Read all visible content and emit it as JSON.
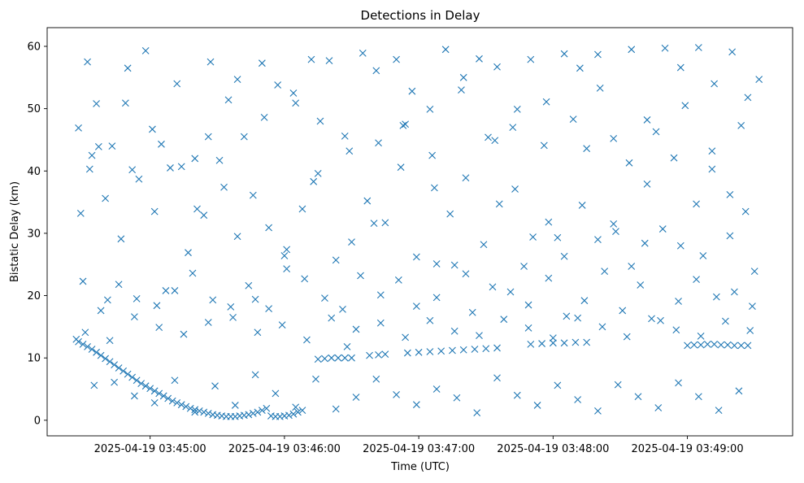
{
  "chart_data": {
    "type": "scatter",
    "title": "Detections in Delay",
    "xlabel": "Time (UTC)",
    "ylabel": "Bistatic Delay (km)",
    "x_tick_labels": [
      "2025-04-19 03:45:00",
      "2025-04-19 03:46:00",
      "2025-04-19 03:47:00",
      "2025-04-19 03:48:00",
      "2025-04-19 03:49:00"
    ],
    "y_ticks": [
      0,
      10,
      20,
      30,
      40,
      50,
      60
    ],
    "xlim": [
      "2025-04-19 03:44:14",
      "2025-04-19 03:49:47"
    ],
    "ylim": [
      -2.5,
      63
    ],
    "grid": false,
    "marker": "x",
    "series_color": "#1f77b4",
    "series": [
      {
        "x": [
          "2025-04-19 03:44:27",
          "2025-04-19 03:44:28",
          "2025-04-19 03:44:30",
          "2025-04-19 03:44:32",
          "2025-04-19 03:44:34",
          "2025-04-19 03:44:36",
          "2025-04-19 03:44:38",
          "2025-04-19 03:44:40",
          "2025-04-19 03:44:42",
          "2025-04-19 03:44:44",
          "2025-04-19 03:44:46",
          "2025-04-19 03:44:48",
          "2025-04-19 03:44:50",
          "2025-04-19 03:44:52",
          "2025-04-19 03:44:54",
          "2025-04-19 03:44:56",
          "2025-04-19 03:44:58",
          "2025-04-19 03:45:00",
          "2025-04-19 03:45:02",
          "2025-04-19 03:45:04",
          "2025-04-19 03:45:06",
          "2025-04-19 03:45:08",
          "2025-04-19 03:45:10",
          "2025-04-19 03:45:12",
          "2025-04-19 03:45:14",
          "2025-04-19 03:45:16",
          "2025-04-19 03:45:18",
          "2025-04-19 03:45:20",
          "2025-04-19 03:45:22",
          "2025-04-19 03:45:24",
          "2025-04-19 03:45:26",
          "2025-04-19 03:45:28",
          "2025-04-19 03:45:30",
          "2025-04-19 03:45:32",
          "2025-04-19 03:45:34",
          "2025-04-19 03:45:36",
          "2025-04-19 03:45:38",
          "2025-04-19 03:45:40",
          "2025-04-19 03:45:42",
          "2025-04-19 03:45:44",
          "2025-04-19 03:45:46",
          "2025-04-19 03:45:48",
          "2025-04-19 03:45:50",
          "2025-04-19 03:45:52",
          "2025-04-19 03:45:54",
          "2025-04-19 03:45:56",
          "2025-04-19 03:45:58",
          "2025-04-19 03:46:00",
          "2025-04-19 03:46:02",
          "2025-04-19 03:46:04",
          "2025-04-19 03:46:06",
          "2025-04-19 03:46:08",
          "2025-04-19 03:46:15",
          "2025-04-19 03:46:18",
          "2025-04-19 03:46:21",
          "2025-04-19 03:46:24",
          "2025-04-19 03:46:27",
          "2025-04-19 03:46:30",
          "2025-04-19 03:46:38",
          "2025-04-19 03:46:42",
          "2025-04-19 03:46:45",
          "2025-04-19 03:46:55",
          "2025-04-19 03:47:00",
          "2025-04-19 03:47:05",
          "2025-04-19 03:47:10",
          "2025-04-19 03:47:15",
          "2025-04-19 03:47:20",
          "2025-04-19 03:47:25",
          "2025-04-19 03:47:30",
          "2025-04-19 03:47:35",
          "2025-04-19 03:47:50",
          "2025-04-19 03:47:55",
          "2025-04-19 03:48:00",
          "2025-04-19 03:48:05",
          "2025-04-19 03:48:10",
          "2025-04-19 03:48:15",
          "2025-04-19 03:49:00",
          "2025-04-19 03:49:03",
          "2025-04-19 03:49:06",
          "2025-04-19 03:49:09",
          "2025-04-19 03:49:12",
          "2025-04-19 03:49:15",
          "2025-04-19 03:49:18",
          "2025-04-19 03:49:21",
          "2025-04-19 03:49:24",
          "2025-04-19 03:49:27",
          "2025-04-19 03:44:32",
          "2025-04-19 03:44:36",
          "2025-04-19 03:44:43",
          "2025-04-19 03:44:50",
          "2025-04-19 03:44:58",
          "2025-04-19 03:45:05",
          "2025-04-19 03:45:12",
          "2025-04-19 03:45:20",
          "2025-04-19 03:45:27",
          "2025-04-19 03:45:35",
          "2025-04-19 03:45:42",
          "2025-04-19 03:45:50",
          "2025-04-19 03:45:57",
          "2025-04-19 03:46:05",
          "2025-04-19 03:46:12",
          "2025-04-19 03:46:20",
          "2025-04-19 03:46:27",
          "2025-04-19 03:46:35",
          "2025-04-19 03:46:42",
          "2025-04-19 03:46:50",
          "2025-04-19 03:46:57",
          "2025-04-19 03:47:05",
          "2025-04-19 03:47:12",
          "2025-04-19 03:47:20",
          "2025-04-19 03:47:27",
          "2025-04-19 03:47:35",
          "2025-04-19 03:47:42",
          "2025-04-19 03:47:50",
          "2025-04-19 03:47:57",
          "2025-04-19 03:48:05",
          "2025-04-19 03:48:12",
          "2025-04-19 03:48:20",
          "2025-04-19 03:48:27",
          "2025-04-19 03:48:35",
          "2025-04-19 03:48:42",
          "2025-04-19 03:48:50",
          "2025-04-19 03:48:57",
          "2025-04-19 03:49:05",
          "2025-04-19 03:49:12",
          "2025-04-19 03:49:20",
          "2025-04-19 03:49:27",
          "2025-04-19 03:49:32",
          "2025-04-19 03:44:33",
          "2025-04-19 03:44:40",
          "2025-04-19 03:44:47",
          "2025-04-19 03:44:55",
          "2025-04-19 03:45:02",
          "2025-04-19 03:45:09",
          "2025-04-19 03:45:17",
          "2025-04-19 03:45:24",
          "2025-04-19 03:45:31",
          "2025-04-19 03:45:39",
          "2025-04-19 03:45:46",
          "2025-04-19 03:45:53",
          "2025-04-19 03:46:01",
          "2025-04-19 03:46:08",
          "2025-04-19 03:46:15",
          "2025-04-19 03:46:23",
          "2025-04-19 03:46:30",
          "2025-04-19 03:46:37",
          "2025-04-19 03:46:45",
          "2025-04-19 03:46:52",
          "2025-04-19 03:46:59",
          "2025-04-19 03:47:07",
          "2025-04-19 03:47:14",
          "2025-04-19 03:47:21",
          "2025-04-19 03:47:29",
          "2025-04-19 03:47:36",
          "2025-04-19 03:47:43",
          "2025-04-19 03:47:51",
          "2025-04-19 03:47:58",
          "2025-04-19 03:48:05",
          "2025-04-19 03:48:13",
          "2025-04-19 03:48:20",
          "2025-04-19 03:48:27",
          "2025-04-19 03:48:35",
          "2025-04-19 03:48:42",
          "2025-04-19 03:48:49",
          "2025-04-19 03:48:57",
          "2025-04-19 03:49:04",
          "2025-04-19 03:49:11",
          "2025-04-19 03:49:19",
          "2025-04-19 03:49:26",
          "2025-04-19 03:44:30",
          "2025-04-19 03:44:38",
          "2025-04-19 03:44:46",
          "2025-04-19 03:44:54",
          "2025-04-19 03:45:03",
          "2025-04-19 03:45:11",
          "2025-04-19 03:45:19",
          "2025-04-19 03:45:28",
          "2025-04-19 03:45:36",
          "2025-04-19 03:45:44",
          "2025-04-19 03:45:53",
          "2025-04-19 03:46:01",
          "2025-04-19 03:46:09",
          "2025-04-19 03:46:18",
          "2025-04-19 03:46:26",
          "2025-04-19 03:46:34",
          "2025-04-19 03:46:43",
          "2025-04-19 03:46:51",
          "2025-04-19 03:46:59",
          "2025-04-19 03:47:08",
          "2025-04-19 03:47:16",
          "2025-04-19 03:47:24",
          "2025-04-19 03:47:33",
          "2025-04-19 03:47:41",
          "2025-04-19 03:47:49",
          "2025-04-19 03:47:58",
          "2025-04-19 03:48:06",
          "2025-04-19 03:48:14",
          "2025-04-19 03:48:23",
          "2025-04-19 03:48:31",
          "2025-04-19 03:48:39",
          "2025-04-19 03:48:48",
          "2025-04-19 03:48:56",
          "2025-04-19 03:49:04",
          "2025-04-19 03:49:13",
          "2025-04-19 03:49:21",
          "2025-04-19 03:49:29",
          "2025-04-19 03:44:35",
          "2025-04-19 03:44:44",
          "2025-04-19 03:44:53",
          "2025-04-19 03:45:02",
          "2025-04-19 03:45:11",
          "2025-04-19 03:45:20",
          "2025-04-19 03:45:29",
          "2025-04-19 03:45:38",
          "2025-04-19 03:45:47",
          "2025-04-19 03:45:56",
          "2025-04-19 03:46:05",
          "2025-04-19 03:46:14",
          "2025-04-19 03:46:23",
          "2025-04-19 03:46:32",
          "2025-04-19 03:46:41",
          "2025-04-19 03:46:50",
          "2025-04-19 03:46:59",
          "2025-04-19 03:47:08",
          "2025-04-19 03:47:17",
          "2025-04-19 03:47:26",
          "2025-04-19 03:47:35",
          "2025-04-19 03:47:44",
          "2025-04-19 03:47:53",
          "2025-04-19 03:48:02",
          "2025-04-19 03:48:11",
          "2025-04-19 03:48:20",
          "2025-04-19 03:48:29",
          "2025-04-19 03:48:38",
          "2025-04-19 03:48:47",
          "2025-04-19 03:48:56",
          "2025-04-19 03:49:05",
          "2025-04-19 03:49:14",
          "2025-04-19 03:49:23",
          "2025-04-19 03:44:28",
          "2025-04-19 03:44:37",
          "2025-04-19 03:44:49",
          "2025-04-19 03:45:01",
          "2025-04-19 03:45:14",
          "2025-04-19 03:45:26",
          "2025-04-19 03:45:39",
          "2025-04-19 03:45:51",
          "2025-04-19 03:46:04",
          "2025-04-19 03:46:16",
          "2025-04-19 03:46:29",
          "2025-04-19 03:46:41",
          "2025-04-19 03:46:54",
          "2025-04-19 03:47:06",
          "2025-04-19 03:47:19",
          "2025-04-19 03:47:31",
          "2025-04-19 03:47:44",
          "2025-04-19 03:47:56",
          "2025-04-19 03:48:09",
          "2025-04-19 03:48:21",
          "2025-04-19 03:48:34",
          "2025-04-19 03:48:46",
          "2025-04-19 03:48:59",
          "2025-04-19 03:49:11",
          "2025-04-19 03:49:24",
          "2025-04-19 03:44:31",
          "2025-04-19 03:44:42",
          "2025-04-19 03:44:53",
          "2025-04-19 03:45:04",
          "2025-04-19 03:45:15",
          "2025-04-19 03:45:26",
          "2025-04-19 03:45:37",
          "2025-04-19 03:45:48",
          "2025-04-19 03:45:59",
          "2025-04-19 03:46:10",
          "2025-04-19 03:46:21",
          "2025-04-19 03:46:32",
          "2025-04-19 03:46:43",
          "2025-04-19 03:46:54",
          "2025-04-19 03:47:05",
          "2025-04-19 03:47:16",
          "2025-04-19 03:47:27",
          "2025-04-19 03:47:38",
          "2025-04-19 03:47:49",
          "2025-04-19 03:48:00",
          "2025-04-19 03:48:11",
          "2025-04-19 03:48:22",
          "2025-04-19 03:48:33",
          "2025-04-19 03:48:44",
          "2025-04-19 03:48:55",
          "2025-04-19 03:49:06",
          "2025-04-19 03:49:17",
          "2025-04-19 03:49:28",
          "2025-04-19 03:44:29",
          "2025-04-19 03:44:34",
          "2025-04-19 03:44:41",
          "2025-04-19 03:44:52",
          "2025-04-19 03:45:07",
          "2025-04-19 03:45:21",
          "2025-04-19 03:45:33",
          "2025-04-19 03:45:47",
          "2025-04-19 03:46:00",
          "2025-04-19 03:46:13",
          "2025-04-19 03:46:28",
          "2025-04-19 03:46:40",
          "2025-04-19 03:46:53",
          "2025-04-19 03:47:08",
          "2025-04-19 03:47:21",
          "2025-04-19 03:47:34",
          "2025-04-19 03:47:47",
          "2025-04-19 03:48:02",
          "2025-04-19 03:48:15",
          "2025-04-19 03:48:28",
          "2025-04-19 03:48:41",
          "2025-04-19 03:48:54",
          "2025-04-19 03:49:07",
          "2025-04-19 03:49:19",
          "2025-04-19 03:49:30"
        ],
        "y": [
          13.0,
          12.6,
          12.2,
          11.8,
          11.4,
          10.9,
          10.4,
          9.9,
          9.4,
          8.9,
          8.4,
          7.9,
          7.4,
          6.9,
          6.4,
          5.9,
          5.5,
          5.1,
          4.7,
          4.3,
          3.9,
          3.5,
          3.1,
          2.8,
          2.5,
          2.2,
          1.9,
          1.7,
          1.5,
          1.3,
          1.1,
          0.9,
          0.8,
          0.7,
          0.6,
          0.6,
          0.6,
          0.7,
          0.8,
          0.9,
          1.1,
          1.3,
          1.6,
          1.9,
          0.7,
          0.6,
          0.6,
          0.7,
          0.8,
          1.0,
          1.3,
          1.6,
          9.8,
          9.9,
          10.0,
          10.0,
          10.0,
          10.0,
          10.4,
          10.5,
          10.6,
          10.8,
          10.9,
          11.0,
          11.1,
          11.2,
          11.3,
          11.4,
          11.5,
          11.6,
          12.2,
          12.3,
          12.4,
          12.4,
          12.5,
          12.5,
          12.0,
          12.1,
          12.1,
          12.2,
          12.2,
          12.1,
          12.1,
          12.0,
          12.0,
          12.0,
          57.5,
          50.8,
          44.0,
          56.5,
          59.3,
          44.3,
          54.0,
          42.0,
          57.5,
          51.4,
          45.5,
          57.3,
          53.8,
          50.9,
          57.9,
          57.7,
          45.6,
          58.9,
          44.5,
          57.9,
          52.8,
          49.9,
          59.5,
          55.0,
          58.0,
          56.7,
          47.0,
          57.9,
          51.1,
          58.8,
          56.5,
          58.7,
          45.2,
          59.5,
          48.2,
          59.7,
          56.6,
          59.8,
          54.0,
          59.1,
          51.8,
          54.7,
          40.3,
          35.6,
          29.1,
          38.7,
          33.5,
          40.5,
          26.9,
          32.9,
          41.7,
          29.5,
          36.1,
          30.9,
          27.4,
          33.9,
          39.6,
          25.7,
          28.6,
          35.2,
          31.7,
          40.6,
          26.2,
          37.3,
          33.1,
          38.9,
          28.2,
          34.7,
          37.1,
          29.4,
          31.8,
          26.3,
          34.5,
          29.0,
          31.5,
          24.7,
          37.9,
          30.7,
          28.0,
          34.7,
          40.3,
          36.2,
          33.5,
          22.3,
          17.6,
          21.8,
          19.5,
          18.4,
          20.8,
          23.6,
          19.3,
          18.2,
          21.6,
          17.9,
          24.3,
          22.7,
          19.6,
          17.8,
          23.2,
          20.1,
          22.5,
          18.3,
          19.7,
          24.9,
          17.3,
          21.4,
          20.6,
          18.5,
          22.8,
          16.7,
          19.2,
          23.9,
          17.6,
          21.7,
          16.0,
          19.1,
          22.6,
          19.8,
          20.6,
          18.3,
          5.6,
          6.1,
          3.9,
          2.8,
          6.4,
          1.3,
          5.5,
          2.4,
          7.3,
          4.3,
          2.1,
          6.6,
          1.8,
          3.7,
          6.6,
          4.1,
          2.5,
          5.0,
          3.6,
          1.2,
          6.8,
          4.0,
          2.4,
          5.6,
          3.3,
          1.5,
          5.7,
          3.8,
          2.0,
          6.0,
          3.8,
          1.6,
          4.7,
          46.9,
          43.9,
          50.9,
          46.7,
          40.7,
          45.5,
          54.7,
          48.6,
          52.5,
          48.0,
          43.2,
          56.1,
          47.5,
          42.5,
          53.0,
          45.4,
          49.9,
          44.1,
          48.3,
          53.3,
          41.3,
          46.3,
          50.5,
          43.2,
          47.3,
          14.1,
          12.8,
          16.6,
          14.9,
          13.8,
          15.7,
          16.5,
          14.1,
          15.3,
          12.9,
          16.4,
          14.6,
          15.6,
          13.3,
          16.0,
          14.3,
          13.6,
          16.2,
          14.8,
          13.2,
          16.4,
          15.0,
          13.4,
          16.3,
          14.5,
          13.5,
          15.9,
          14.4,
          33.2,
          42.5,
          19.3,
          40.2,
          20.8,
          33.9,
          37.4,
          19.4,
          26.4,
          38.3,
          11.8,
          31.6,
          47.3,
          25.1,
          23.5,
          44.9,
          24.7,
          29.3,
          43.6,
          30.3,
          28.4,
          42.1,
          26.4,
          29.6,
          23.9
        ]
      }
    ]
  }
}
